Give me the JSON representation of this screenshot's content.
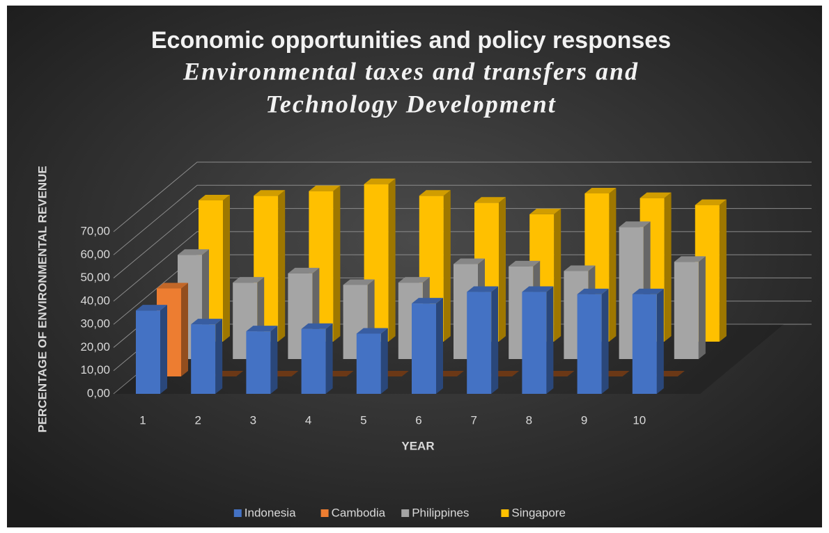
{
  "chart_data": {
    "type": "bar3d",
    "title": "Economic opportunities and policy responses",
    "subtitle_lines": [
      "Environmental taxes and transfers and",
      "Technology Development"
    ],
    "y_label": "PERCENTAGE OF ENVIRONMENTAL REVENUE",
    "x_label": "YEAR",
    "categories": [
      "1",
      "2",
      "3",
      "4",
      "5",
      "6",
      "7",
      "8",
      "9",
      "10"
    ],
    "series": [
      {
        "name": "Indonesia",
        "color": "#4472c4",
        "values": [
          36,
          30,
          27,
          28,
          26,
          39,
          44,
          44,
          43,
          43
        ]
      },
      {
        "name": "Cambodia",
        "color": "#ed7d31",
        "values": [
          38,
          0,
          0,
          0,
          0,
          0,
          0,
          0,
          0,
          0
        ]
      },
      {
        "name": "Philippines",
        "color": "#a5a5a5",
        "values": [
          45,
          33,
          37,
          32,
          33,
          41,
          40,
          38,
          57,
          42
        ]
      },
      {
        "name": "Singapore",
        "color": "#ffc000",
        "values": [
          61,
          63,
          65,
          68,
          63,
          60,
          55,
          64,
          62,
          59
        ]
      }
    ],
    "ylim": [
      0,
      70
    ],
    "yticks": [
      {
        "value": 0,
        "label": "0,00"
      },
      {
        "value": 10,
        "label": "10,00"
      },
      {
        "value": 20,
        "label": "20,00"
      },
      {
        "value": 30,
        "label": "30,00"
      },
      {
        "value": 40,
        "label": "40,00"
      },
      {
        "value": 50,
        "label": "50,00"
      },
      {
        "value": 60,
        "label": "60,00"
      },
      {
        "value": 70,
        "label": "70,00"
      }
    ],
    "grid": true,
    "legend": "bottom"
  }
}
